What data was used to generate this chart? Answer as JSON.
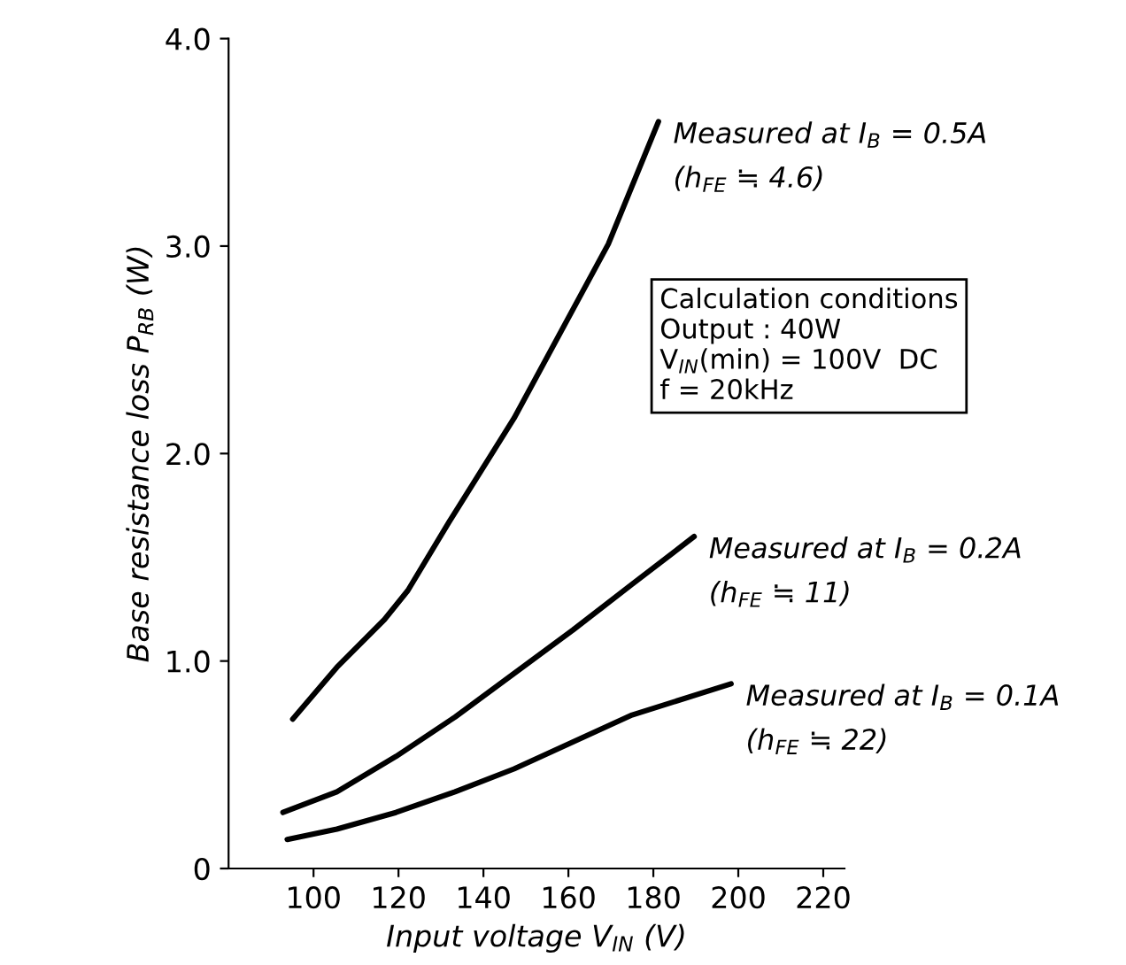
{
  "chart_data": {
    "type": "line",
    "xlabel": "Input voltage V$_{IN}$ (V)",
    "ylabel": "Base resistance loss P$_{RB}$ (W)",
    "xlim": [
      80,
      225
    ],
    "xticks": [
      100,
      120,
      140,
      160,
      180,
      200,
      220
    ],
    "ylim": [
      0,
      4.0
    ],
    "yticks": [
      0,
      {
        "value": 1,
        "label": "1.0"
      },
      {
        "value": 2,
        "label": "2.0"
      },
      {
        "value": 3,
        "label": "3.0"
      },
      {
        "value": 4,
        "label": "4.0"
      }
    ],
    "grid": false,
    "marker": "none",
    "line_style": "solid",
    "series": [
      {
        "color": "#000000",
        "x": [
          95.1,
          105.5,
          116.7,
          122.2,
          131.9,
          147.2,
          169.4,
          181.2
        ],
        "values": [
          0.72,
          0.97,
          1.2,
          1.34,
          1.67,
          2.17,
          3.01,
          3.6
        ]
      },
      {
        "color": "#000000",
        "x": [
          92.8,
          105.5,
          119.4,
          133.3,
          147.2,
          161.1,
          175,
          189.6
        ],
        "values": [
          0.27,
          0.37,
          0.54,
          0.73,
          0.94,
          1.15,
          1.37,
          1.6
        ]
      },
      {
        "color": "#000000",
        "x": [
          93.8,
          105.5,
          119.4,
          133.3,
          147.2,
          161.1,
          175,
          198.3
        ],
        "values": [
          0.14,
          0.19,
          0.27,
          0.37,
          0.48,
          0.61,
          0.74,
          0.89
        ]
      }
    ],
    "annotations": [
      {
        "text": "Measured at I$_{B}$ = 0.5A",
        "x": 181.2,
        "y": 3.6
      },
      {
        "text": "(h$_{FE}$ ≒ 4.6)",
        "x": 181.2,
        "y": 3.6
      },
      {
        "text": "Measured at I$_{B}$ = 0.2A",
        "x": 189.6,
        "y": 1.6
      },
      {
        "text": "(h$_{FE}$ ≒ 11)",
        "x": 189.6,
        "y": 1.6
      },
      {
        "text": "Measured at I$_{B}$ = 0.1A",
        "x": 198.3,
        "y": 0.89
      },
      {
        "text": "(h$_{FE}$ ≒ 22)",
        "x": 198.3,
        "y": 0.89
      },
      "Calculation conditions\nOutput : 40W\nV$_{IN}$(min) = 100V  DC\nf = 20kHz"
    ]
  }
}
